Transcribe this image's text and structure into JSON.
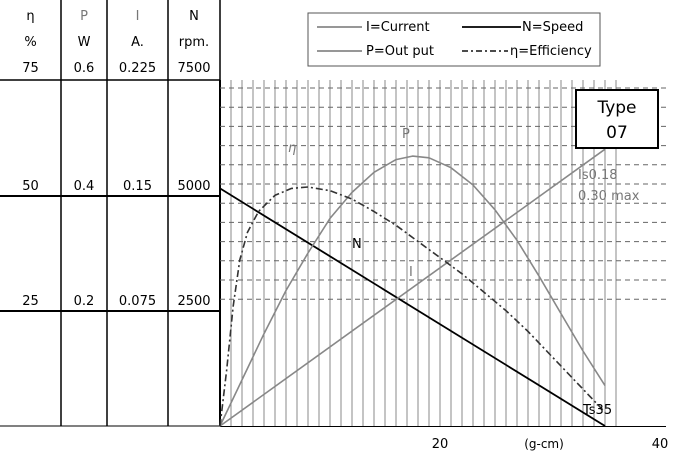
{
  "chart_data": {
    "type": "line",
    "title": "",
    "type_label": {
      "line1": "Type",
      "line2": "07"
    },
    "xlabel": "(g-cm)",
    "xticks": [
      {
        "value": 20,
        "label": "20"
      },
      {
        "value": 40,
        "label": "40"
      }
    ],
    "xlim": [
      0,
      40
    ],
    "grid": "on (vertical every 1 g-cm, horizontal dashed)",
    "legend": {
      "placement": "top-right",
      "entries": [
        {
          "key": "I",
          "label": "I=Current",
          "style": "solid",
          "color": "#888888"
        },
        {
          "key": "N",
          "label": "N=Speed",
          "style": "solid",
          "color": "#000000"
        },
        {
          "key": "P",
          "label": "P=Out put",
          "style": "solid",
          "color": "#888888"
        },
        {
          "key": "eta",
          "label": "η=Efficiency",
          "style": "dash-dot",
          "color": "#333333"
        }
      ]
    },
    "axis_columns": [
      {
        "key": "eta",
        "symbol": "η",
        "unit": "%",
        "ticks": [
          "75",
          "50",
          "25"
        ],
        "color": "#000000"
      },
      {
        "key": "P",
        "symbol": "P",
        "unit": "W",
        "ticks": [
          "0.6",
          "0.4",
          "0.2"
        ],
        "color": "#777777"
      },
      {
        "key": "I",
        "symbol": "I",
        "unit": "A.",
        "ticks": [
          "0.225",
          "0.15",
          "0.075"
        ],
        "color": "#777777"
      },
      {
        "key": "N",
        "symbol": "N",
        "unit": "rpm.",
        "ticks": [
          "7500",
          "5000",
          "2500"
        ],
        "color": "#000000"
      }
    ],
    "ylim": {
      "eta": [
        0,
        75
      ],
      "P": [
        0,
        0.6
      ],
      "I": [
        0,
        0.225
      ],
      "N": [
        0,
        7500
      ]
    },
    "series": [
      {
        "key": "N",
        "name": "N",
        "axis": "N",
        "x": [
          0,
          35
        ],
        "y": [
          5150,
          0
        ]
      },
      {
        "key": "I",
        "name": "I",
        "axis": "I",
        "x": [
          0,
          35
        ],
        "y": [
          0.0,
          0.18
        ]
      },
      {
        "key": "P",
        "name": "P",
        "axis": "P",
        "x": [
          0,
          2,
          4,
          6,
          8,
          10,
          12,
          14,
          16,
          17.5,
          19,
          21,
          23,
          25,
          27,
          29,
          31,
          33,
          35
        ],
        "y": [
          0.0,
          0.08,
          0.16,
          0.235,
          0.3,
          0.36,
          0.405,
          0.44,
          0.462,
          0.468,
          0.465,
          0.448,
          0.418,
          0.375,
          0.322,
          0.26,
          0.195,
          0.13,
          0.07
        ]
      },
      {
        "key": "eta",
        "name": "η",
        "axis": "eta",
        "x": [
          0,
          0.6,
          1.2,
          1.8,
          2.5,
          3.5,
          5,
          6.5,
          8,
          10,
          12,
          14,
          16,
          18,
          20,
          22,
          24,
          26,
          28,
          30,
          32,
          35
        ],
        "y": [
          0,
          12,
          26,
          36,
          42,
          46.5,
          50,
          51.5,
          51.8,
          51,
          49.2,
          46.5,
          43.5,
          40,
          36.5,
          33,
          29,
          25,
          20.5,
          15.5,
          10.5,
          3
        ]
      }
    ],
    "annotations": [
      {
        "text": "η",
        "series": "eta",
        "color": "#777777"
      },
      {
        "text": "P",
        "series": "P",
        "color": "#777777"
      },
      {
        "text": "N",
        "series": "N",
        "color": "#000000"
      },
      {
        "text": "I",
        "series": "I",
        "color": "#777777"
      },
      {
        "text": "Is0.18",
        "series": "I",
        "color": "#777777"
      },
      {
        "text": "0.30 max",
        "series": "I",
        "color": "#777777"
      },
      {
        "text": "Ts35",
        "series": "N",
        "color": "#000000"
      }
    ]
  }
}
